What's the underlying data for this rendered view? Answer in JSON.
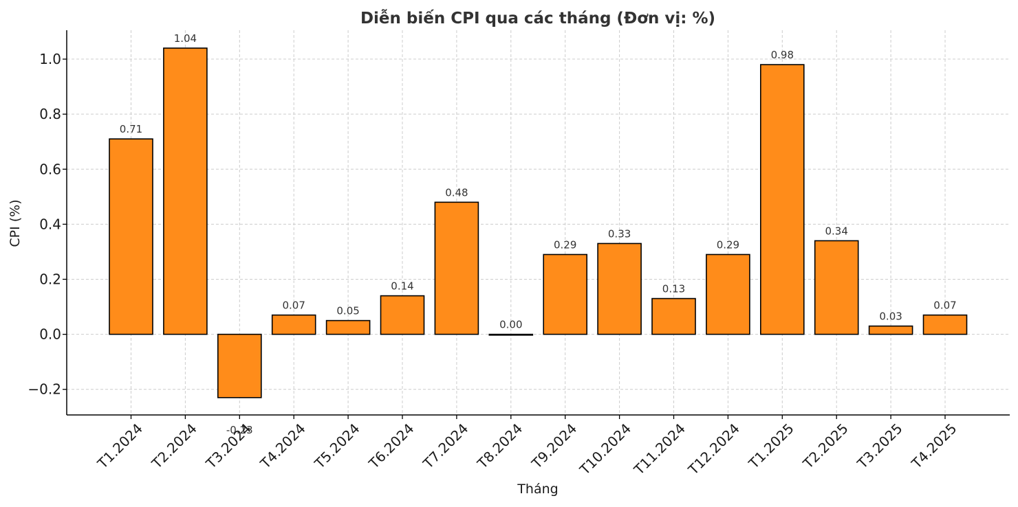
{
  "chart_data": {
    "type": "bar",
    "title": "Diễn biến CPI qua các tháng (Đơn vị: %)",
    "xlabel": "Tháng",
    "ylabel": "CPI (%)",
    "categories": [
      "T1.2024",
      "T2.2024",
      "T3.2024",
      "T4.2024",
      "T5.2024",
      "T6.2024",
      "T7.2024",
      "T8.2024",
      "T9.2024",
      "T10.2024",
      "T11.2024",
      "T12.2024",
      "T1.2025",
      "T2.2025",
      "T3.2025",
      "T4.2025"
    ],
    "values": [
      0.71,
      1.04,
      -0.23,
      0.07,
      0.05,
      0.14,
      0.48,
      0.0,
      0.29,
      0.33,
      0.13,
      0.29,
      0.98,
      0.34,
      0.03,
      0.07
    ],
    "value_labels": [
      "0.71",
      "1.04",
      "-0.23",
      "0.07",
      "0.05",
      "0.14",
      "0.48",
      "0.00",
      "0.29",
      "0.33",
      "0.13",
      "0.29",
      "0.98",
      "0.34",
      "0.03",
      "0.07"
    ],
    "ylim": [
      -0.293,
      1.105
    ],
    "yticks": [
      -0.2,
      0.0,
      0.2,
      0.4,
      0.6,
      0.8,
      1.0
    ],
    "ytick_labels": [
      "−0.2",
      "0.0",
      "0.2",
      "0.4",
      "0.6",
      "0.8",
      "1.0"
    ],
    "grid": true,
    "bar_color": "#FF8C1A",
    "bar_edge_color": "#000000",
    "grid_color": "#cccccc",
    "text_color": "#333333"
  }
}
